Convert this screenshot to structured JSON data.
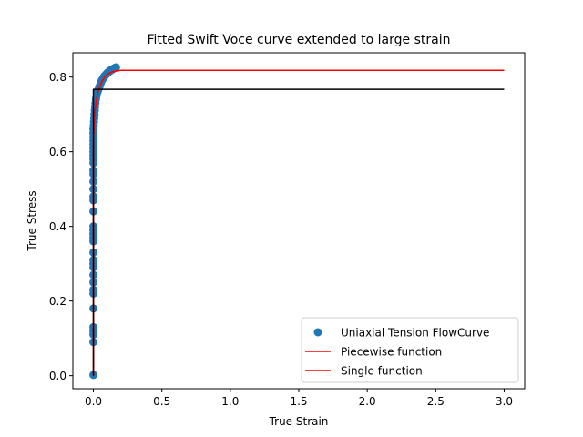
{
  "chart_data": {
    "type": "scatter",
    "title": "Fitted Swift Voce curve extended to large strain",
    "xlabel": "True Strain",
    "ylabel": "True Stress",
    "xlim": [
      -0.15,
      3.15
    ],
    "ylim": [
      -0.035,
      0.865
    ],
    "x_ticks": [
      0.0,
      0.5,
      1.0,
      1.5,
      2.0,
      2.5,
      3.0
    ],
    "x_tick_labels": [
      "0.0",
      "0.5",
      "1.0",
      "1.5",
      "2.0",
      "2.5",
      "3.0"
    ],
    "y_ticks": [
      0.0,
      0.2,
      0.4,
      0.6,
      0.8
    ],
    "y_tick_labels": [
      "0.0",
      "0.2",
      "0.4",
      "0.6",
      "0.8"
    ],
    "grid": false,
    "legend_position": "lower-right",
    "series": [
      {
        "name": "Uniaxial Tension FlowCurve",
        "kind": "scatter",
        "color": "#1f77b4",
        "x": [
          0.0,
          0.0,
          0.0,
          0.0,
          0.0,
          0.0,
          0.0,
          0.0,
          0.0,
          0.0,
          0.0,
          0.0,
          0.0,
          0.0,
          0.0,
          0.0,
          0.0,
          0.0,
          0.0,
          0.0,
          0.0,
          0.0,
          0.0,
          0.0,
          0.0,
          0.0,
          0.0,
          0.0,
          0.0,
          0.0,
          0.0,
          0.0,
          0.0,
          0.0,
          0.0,
          0.0,
          0.002,
          0.004,
          0.006,
          0.008,
          0.01,
          0.012,
          0.015,
          0.018,
          0.02,
          0.025,
          0.03,
          0.035,
          0.04,
          0.045,
          0.05,
          0.055,
          0.06,
          0.065,
          0.07,
          0.075,
          0.08,
          0.085,
          0.09,
          0.095,
          0.1,
          0.105,
          0.11,
          0.115,
          0.12,
          0.125,
          0.13,
          0.135,
          0.14,
          0.145,
          0.15,
          0.155,
          0.16,
          0.165
        ],
        "y": [
          0.002,
          0.09,
          0.11,
          0.12,
          0.13,
          0.18,
          0.22,
          0.23,
          0.25,
          0.27,
          0.29,
          0.3,
          0.31,
          0.33,
          0.36,
          0.37,
          0.38,
          0.39,
          0.4,
          0.44,
          0.47,
          0.48,
          0.5,
          0.52,
          0.54,
          0.55,
          0.57,
          0.58,
          0.59,
          0.6,
          0.61,
          0.62,
          0.63,
          0.64,
          0.65,
          0.66,
          0.67,
          0.68,
          0.69,
          0.7,
          0.71,
          0.72,
          0.73,
          0.74,
          0.745,
          0.755,
          0.76,
          0.765,
          0.77,
          0.775,
          0.78,
          0.785,
          0.79,
          0.793,
          0.796,
          0.799,
          0.802,
          0.804,
          0.806,
          0.808,
          0.81,
          0.812,
          0.813,
          0.815,
          0.816,
          0.818,
          0.819,
          0.82,
          0.821,
          0.822,
          0.823,
          0.824,
          0.825,
          0.826
        ]
      },
      {
        "name": "Piecewise function",
        "kind": "line",
        "color": "#ff0000",
        "x": [
          0.0,
          0.0,
          0.003,
          0.006,
          0.01,
          0.015,
          0.02,
          0.03,
          0.04,
          0.05,
          0.06,
          0.07,
          0.08,
          0.09,
          0.1,
          0.12,
          0.14,
          0.16,
          0.18,
          0.2,
          0.25,
          0.3,
          0.5,
          1.0,
          1.5,
          2.0,
          2.5,
          3.0
        ],
        "y": [
          0.0,
          0.62,
          0.66,
          0.685,
          0.705,
          0.72,
          0.735,
          0.755,
          0.768,
          0.778,
          0.786,
          0.793,
          0.798,
          0.803,
          0.806,
          0.811,
          0.814,
          0.816,
          0.817,
          0.818,
          0.818,
          0.818,
          0.818,
          0.818,
          0.818,
          0.818,
          0.818,
          0.818
        ]
      },
      {
        "name": "Single function",
        "kind": "line",
        "color": "#ff0000",
        "x": [
          0.0,
          0.0,
          0.003,
          0.006,
          0.01,
          0.015,
          0.02,
          0.03,
          0.04,
          0.05,
          0.06,
          0.07,
          0.08,
          0.09,
          0.1,
          0.12,
          0.14,
          0.16,
          0.18,
          0.2,
          0.25,
          0.3,
          0.5,
          1.0,
          1.5,
          2.0,
          2.5,
          3.0
        ],
        "y": [
          0.0,
          0.62,
          0.66,
          0.685,
          0.705,
          0.72,
          0.735,
          0.755,
          0.768,
          0.778,
          0.786,
          0.793,
          0.798,
          0.803,
          0.806,
          0.811,
          0.814,
          0.816,
          0.817,
          0.818,
          0.818,
          0.818,
          0.818,
          0.818,
          0.818,
          0.818,
          0.818,
          0.818
        ]
      },
      {
        "kind": "line",
        "color": "#000000",
        "x": [
          0.0,
          0.0,
          0.015,
          3.0
        ],
        "y": [
          0.0,
          0.767,
          0.767,
          0.767
        ]
      }
    ]
  }
}
